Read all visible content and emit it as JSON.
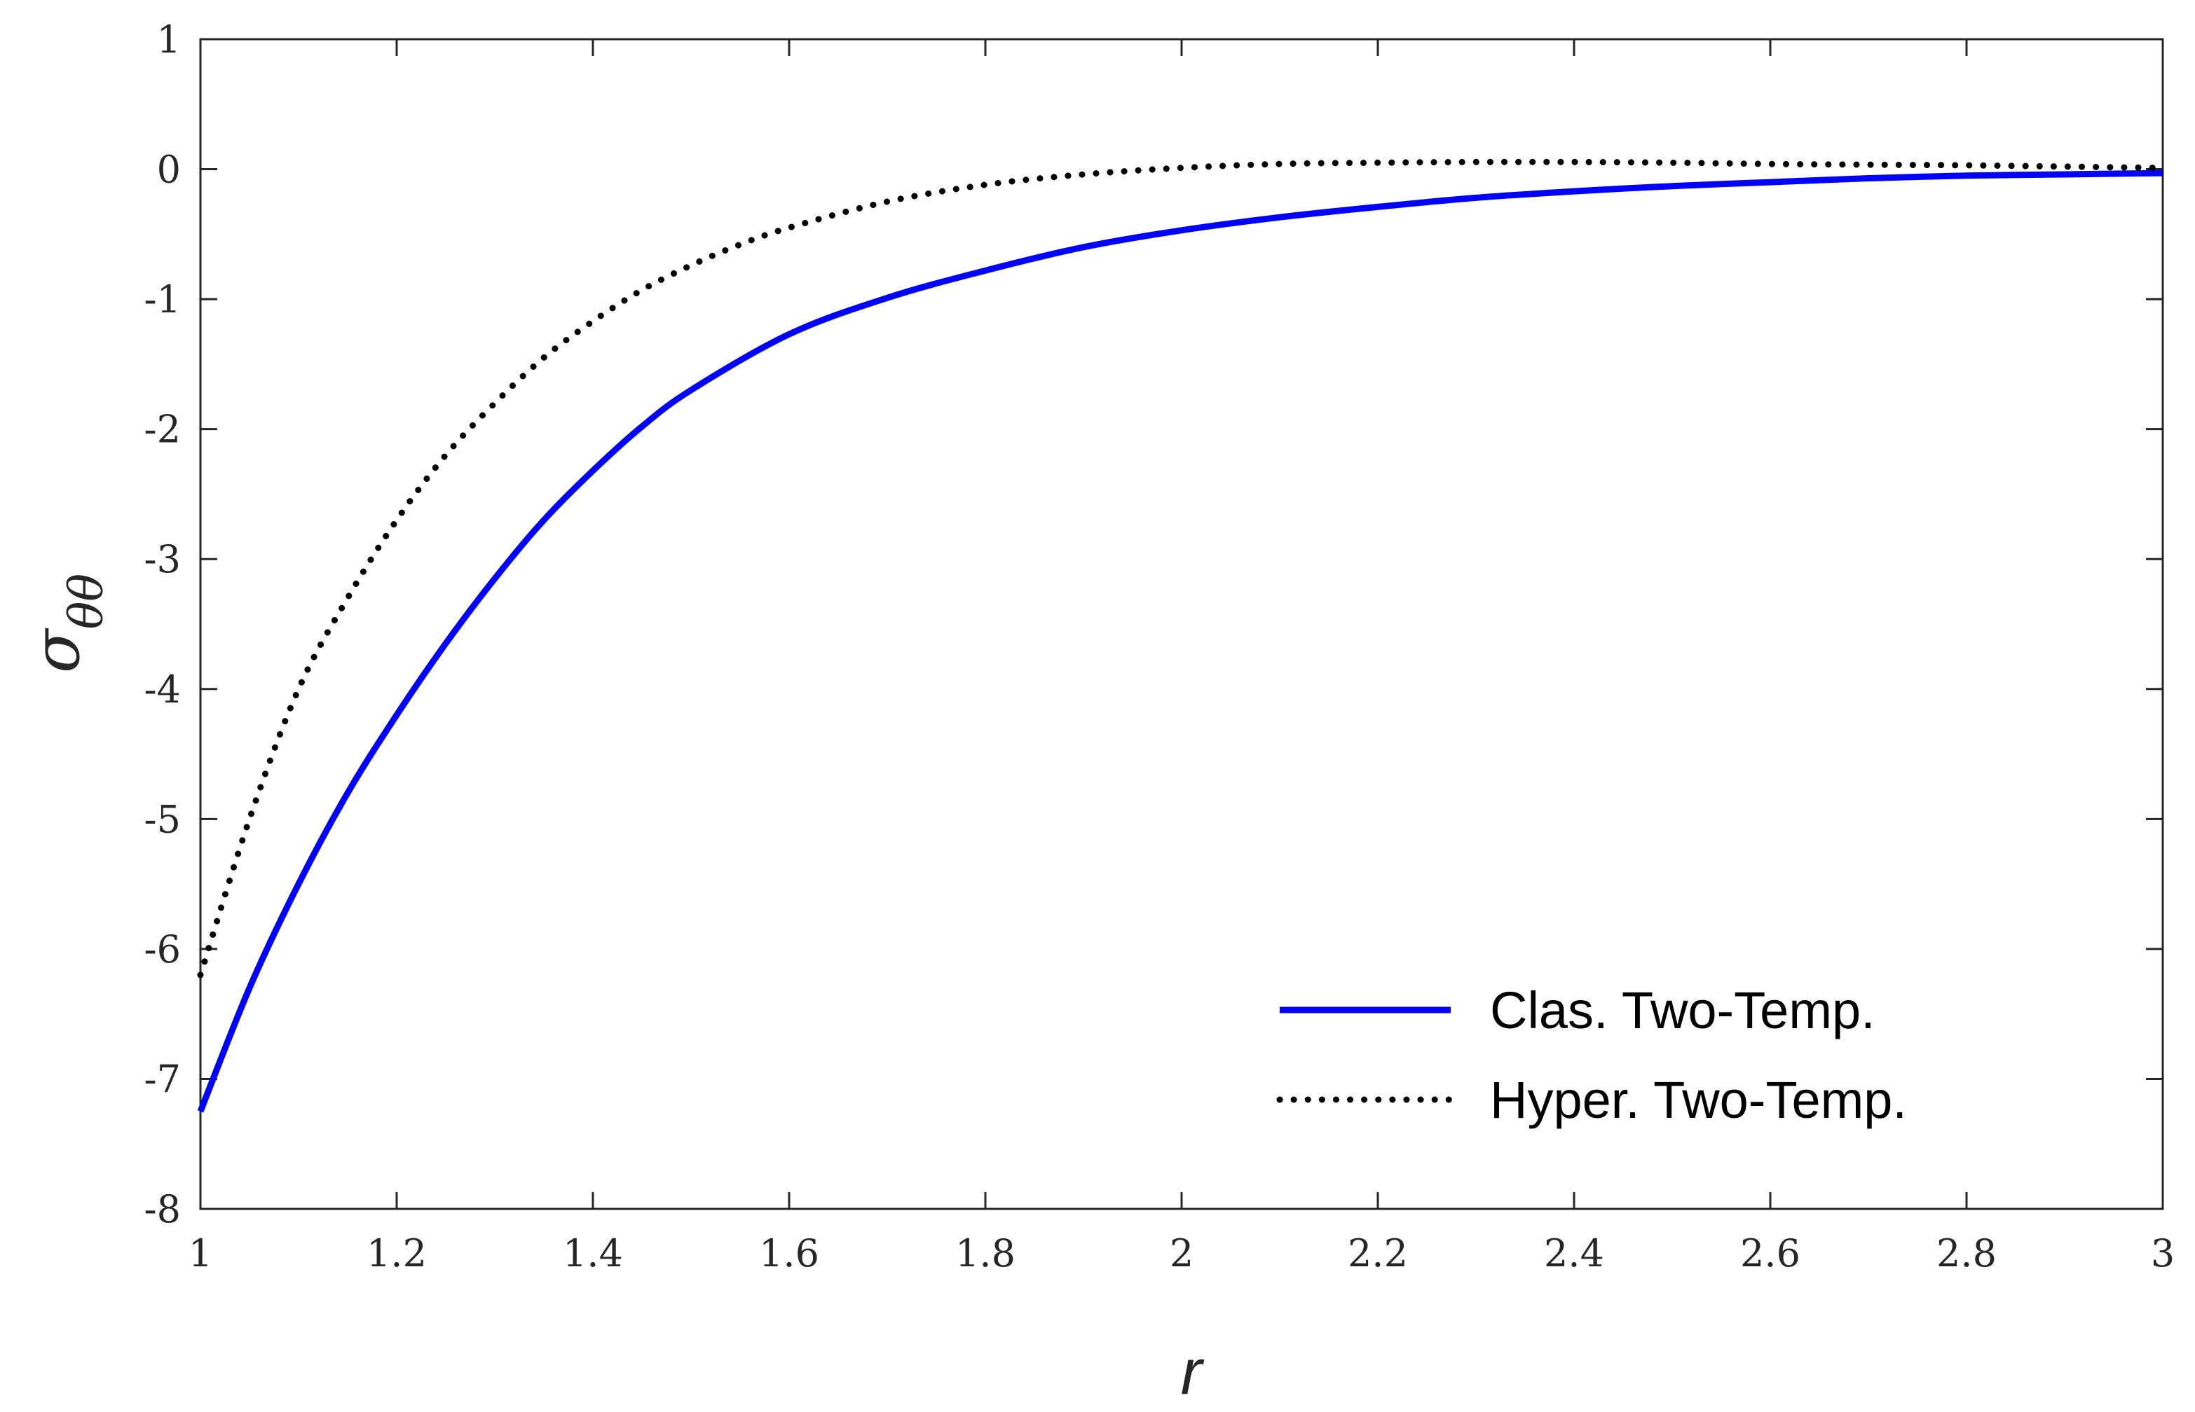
{
  "chart_data": {
    "type": "line",
    "title": "",
    "xlabel": "r",
    "ylabel": {
      "symbol": "σ",
      "subscript": "θθ"
    },
    "xlim": [
      1,
      3
    ],
    "ylim": [
      -8,
      1
    ],
    "x_ticks": [
      "1",
      "1.2",
      "1.4",
      "1.6",
      "1.8",
      "2",
      "2.2",
      "2.4",
      "2.6",
      "2.8",
      "3"
    ],
    "y_ticks": [
      "1",
      "0",
      "-1",
      "-2",
      "-3",
      "-4",
      "-5",
      "-6",
      "-7",
      "-8"
    ],
    "grid": false,
    "legend_position": "bottom-right",
    "series": [
      {
        "name": "Clas. Two-Temp.",
        "color": "#0000ff",
        "style": "solid",
        "x": [
          1.0,
          1.05,
          1.1,
          1.15,
          1.2,
          1.25,
          1.3,
          1.35,
          1.4,
          1.45,
          1.5,
          1.6,
          1.7,
          1.8,
          1.9,
          2.0,
          2.1,
          2.2,
          2.3,
          2.4,
          2.5,
          2.6,
          2.7,
          2.8,
          2.9,
          3.0
        ],
        "values": [
          -7.25,
          -6.3,
          -5.5,
          -4.8,
          -4.2,
          -3.65,
          -3.15,
          -2.7,
          -2.32,
          -1.98,
          -1.7,
          -1.27,
          -0.99,
          -0.78,
          -0.6,
          -0.47,
          -0.37,
          -0.29,
          -0.22,
          -0.17,
          -0.13,
          -0.1,
          -0.07,
          -0.05,
          -0.04,
          -0.03
        ]
      },
      {
        "name": "Hyper. Two-Temp.",
        "color": "#000000",
        "style": "dotted",
        "x": [
          1.0,
          1.05,
          1.1,
          1.15,
          1.2,
          1.25,
          1.3,
          1.35,
          1.4,
          1.45,
          1.5,
          1.55,
          1.6,
          1.7,
          1.8,
          1.9,
          2.0,
          2.1,
          2.2,
          2.3,
          2.4,
          2.5,
          2.6,
          2.7,
          2.8,
          2.9,
          3.0
        ],
        "values": [
          -6.2,
          -5.0,
          -4.0,
          -3.3,
          -2.7,
          -2.2,
          -1.8,
          -1.45,
          -1.17,
          -0.93,
          -0.74,
          -0.58,
          -0.45,
          -0.25,
          -0.12,
          -0.04,
          0.01,
          0.04,
          0.05,
          0.055,
          0.055,
          0.05,
          0.04,
          0.035,
          0.03,
          0.02,
          0.01
        ]
      }
    ]
  }
}
